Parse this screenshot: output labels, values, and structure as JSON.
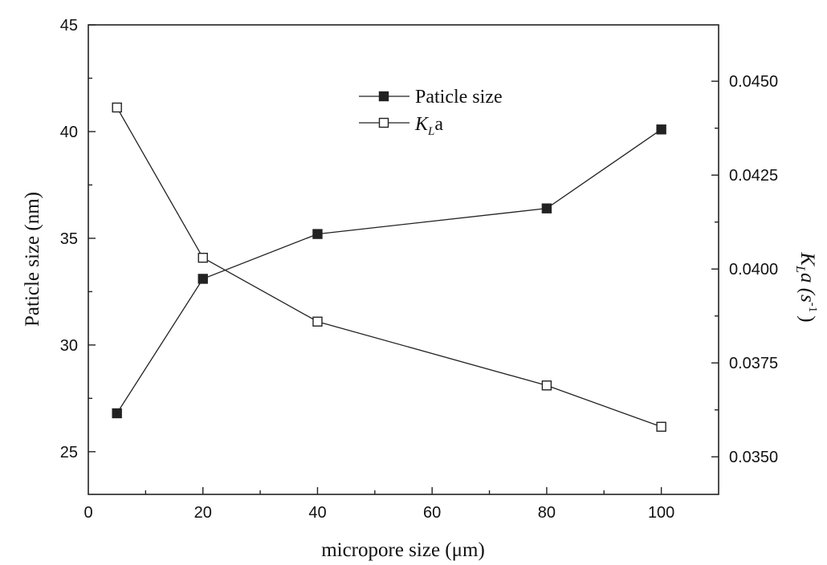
{
  "chart_data": {
    "type": "line",
    "x": [
      5,
      20,
      40,
      80,
      100
    ],
    "xlabel": "micropore size (μm)",
    "xlim": [
      0,
      110
    ],
    "xticks": [
      "0",
      "20",
      "40",
      "60",
      "80",
      "100"
    ],
    "ylabel_left": "Paticle size (nm)",
    "ylim_left": [
      23,
      45
    ],
    "yticks_left": [
      "25",
      "30",
      "35",
      "40",
      "45"
    ],
    "ylabel_right": {
      "k": "K",
      "sub": "L",
      "rest": "a (s",
      "sup": "-1",
      "close": ")"
    },
    "ylim_right": [
      0.034,
      0.0465
    ],
    "yticks_right": [
      "0.0350",
      "0.0375",
      "0.0400",
      "0.0425",
      "0.0450"
    ],
    "grid": false,
    "legend_position": "top-center",
    "series": [
      {
        "name": "Paticle size",
        "axis": "left",
        "marker": "filled-square",
        "values": [
          26.8,
          33.1,
          35.2,
          36.4,
          40.1
        ]
      },
      {
        "name_main": "K",
        "name_sub": "L",
        "name_rest": "a",
        "axis": "right",
        "marker": "open-square",
        "values": [
          0.0443,
          0.0403,
          0.0386,
          0.0369,
          0.0358
        ]
      }
    ]
  }
}
